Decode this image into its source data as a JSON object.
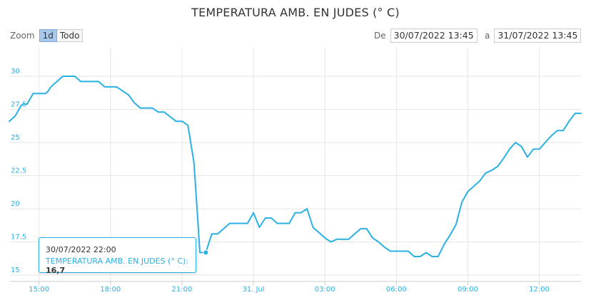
{
  "toolbar": {
    "zoom_label": "Zoom",
    "zoom_buttons": [
      "1d",
      "Todo"
    ],
    "zoom_selected": "1d",
    "from_label": "De",
    "from_value": "30/07/2022 13:45",
    "to_label": "a",
    "to_value": "31/07/2022 13:45"
  },
  "tooltip": {
    "date": "30/07/2022 22:00",
    "series_label": "TEMPERATURA AMB. EN JUDES (° C):",
    "value": "16,7"
  },
  "colors": {
    "series": "#2ab0e4",
    "grid": "#e6e6e6",
    "axis_labels": "#2ab0e4",
    "zoom_selected_bg": "#a8c8ec"
  },
  "chart_data": {
    "type": "line",
    "title": "TEMPERATURA AMB. EN JUDES (° C)",
    "xlabel": "",
    "ylabel": "",
    "x_unit": "hours since 30/07/2022 13:45",
    "xlim": [
      0.0,
      24.0
    ],
    "ylim": [
      15,
      31
    ],
    "y_ticks": [
      15,
      17.5,
      20,
      22.5,
      25,
      27.5,
      30
    ],
    "y_tick_labels": [
      "15",
      "17.5",
      "20",
      "22.5",
      "25",
      "27.5",
      "30"
    ],
    "x_tick_labels": [
      "15:00",
      "18:00",
      "21:00",
      "31. Jul",
      "03:00",
      "06:00",
      "09:00",
      "12:00"
    ],
    "grid": true,
    "legend": "none",
    "series": [
      {
        "name": "TEMPERATURA AMB. EN JUDES (° C)",
        "x": [
          0.0,
          0.25,
          0.5,
          0.6,
          0.75,
          1.0,
          1.25,
          1.5,
          1.6,
          1.75,
          2.0,
          2.25,
          2.5,
          2.75,
          3.0,
          3.5,
          3.75,
          4.0,
          4.25,
          4.5,
          5.0,
          5.25,
          5.5,
          6.0,
          6.25,
          6.5,
          7.0,
          7.25,
          7.5,
          7.75,
          7.9,
          8.0,
          8.1,
          8.25,
          8.5,
          8.75,
          9.0,
          9.25,
          9.5,
          9.75,
          10.0,
          10.25,
          10.5,
          10.75,
          11.0,
          11.25,
          11.5,
          11.75,
          12.0,
          12.25,
          12.5,
          12.75,
          13.0,
          13.25,
          13.5,
          13.75,
          14.0,
          14.25,
          14.5,
          14.75,
          15.0,
          15.25,
          15.5,
          15.75,
          16.0,
          16.25,
          16.5,
          16.75,
          17.0,
          17.25,
          17.5,
          17.75,
          18.0,
          18.25,
          18.5,
          18.75,
          19.0,
          19.25,
          19.5,
          19.75,
          20.0,
          20.25,
          20.5,
          20.75,
          21.0,
          21.25,
          21.5,
          21.75,
          22.0,
          22.25,
          22.5,
          22.75,
          23.0,
          23.25,
          23.5,
          23.75,
          24.0
        ],
        "y": [
          26.6,
          27.0,
          27.8,
          27.9,
          27.9,
          28.7,
          28.7,
          28.7,
          28.8,
          29.2,
          29.6,
          30.0,
          30.0,
          30.0,
          29.6,
          29.6,
          29.6,
          29.2,
          29.2,
          29.2,
          28.6,
          28.0,
          27.6,
          27.6,
          27.3,
          27.3,
          26.6,
          26.6,
          26.3,
          23.5,
          19.5,
          16.7,
          16.7,
          16.7,
          18.1,
          18.1,
          18.5,
          18.9,
          18.9,
          18.9,
          18.9,
          19.7,
          18.6,
          19.3,
          19.3,
          18.9,
          18.9,
          18.9,
          19.7,
          19.7,
          20.0,
          18.6,
          18.2,
          17.8,
          17.5,
          17.7,
          17.7,
          17.7,
          18.1,
          18.5,
          18.5,
          17.8,
          17.5,
          17.1,
          16.8,
          16.8,
          16.8,
          16.8,
          16.4,
          16.4,
          16.7,
          16.4,
          16.4,
          17.3,
          18.0,
          18.8,
          20.5,
          21.3,
          21.7,
          22.1,
          22.7,
          22.9,
          23.2,
          23.8,
          24.5,
          25.0,
          24.7,
          23.9,
          24.5,
          24.5,
          25.0,
          25.5,
          25.9,
          25.9,
          26.6,
          27.2,
          27.2
        ]
      }
    ]
  }
}
